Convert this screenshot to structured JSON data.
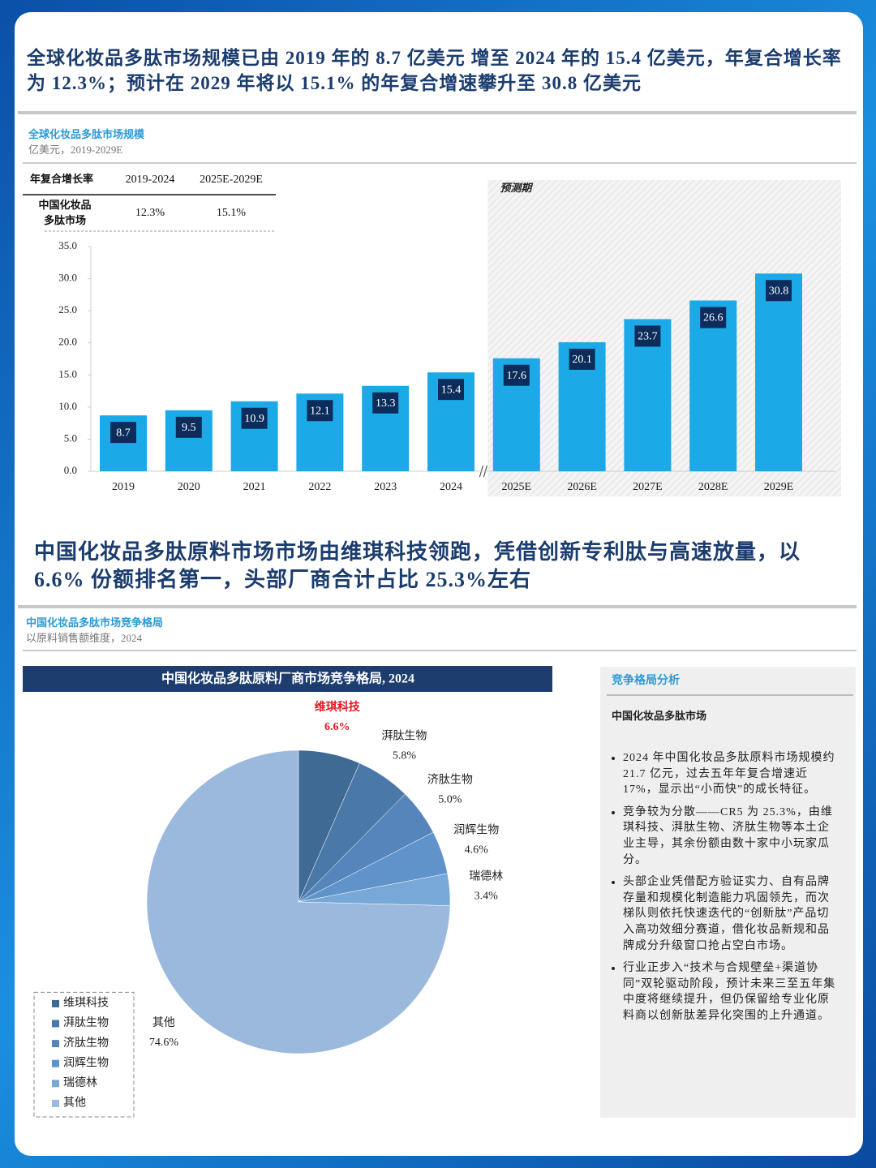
{
  "headline_top": "全球化妆品多肽市场规模已由 2019 年的 8.7 亿美元 增至 2024 年的 15.4 亿美元，年复合增长率为 12.3%；预计在 2029 年将以 15.1% 的年复合增速攀升至 30.8 亿美元",
  "cagr_table": {
    "header": [
      "年复合增长率",
      "2019-2024",
      "2025E-2029E"
    ],
    "row_label": [
      "中国化妆品",
      "多肽市场"
    ],
    "row_values": [
      "12.3%",
      "15.1%"
    ]
  },
  "headline_bottom": "中国化妆品多肽原料市场市场由维琪科技领跑，凭借创新专利肽与高速放量，以 6.6% 份额排名第一，头部厂商合计占比 25.3%左右",
  "chart_data": [
    {
      "type": "bar",
      "title": "全球化妆品多肽市场规模",
      "subtitle": "亿美元，2019-2029E",
      "annotation": "预测期",
      "categories": [
        "2019",
        "2020",
        "2021",
        "2022",
        "2023",
        "2024",
        "2025E",
        "2026E",
        "2027E",
        "2028E",
        "2029E"
      ],
      "values": [
        8.7,
        9.5,
        10.9,
        12.1,
        13.3,
        15.4,
        17.6,
        20.1,
        23.7,
        26.6,
        30.8
      ],
      "color": "#1ba9e8",
      "label_color": "#0c2d5c",
      "ylim": [
        0,
        35
      ],
      "yticks": [
        {
          "value": 0,
          "label": "0.0"
        },
        {
          "value": 5,
          "label": "5.0"
        },
        {
          "value": 10,
          "label": "10.0"
        },
        {
          "value": 15,
          "label": "15.0"
        },
        {
          "value": 20,
          "label": "20.0"
        },
        {
          "value": 25,
          "label": "25.0"
        },
        {
          "value": 30,
          "label": "30.0"
        },
        {
          "value": 35,
          "label": "35.0"
        }
      ]
    },
    {
      "type": "pie",
      "title": "中国化妆品多肽市场竞争格局",
      "subtitle": "以原料销售额维度，2024",
      "banner": "中国化妆品多肽原料厂商市场竞争格局, 2024",
      "categories": [
        "维琪科技",
        "湃肽生物",
        "济肽生物",
        "润辉生物",
        "瑞德林",
        "其他"
      ],
      "values": [
        6.6,
        5.8,
        5.0,
        4.6,
        3.4,
        74.6
      ],
      "value_labels": [
        "6.6%",
        "5.8%",
        "5.0%",
        "4.6%",
        "3.4%",
        "74.6%"
      ],
      "colors": [
        "#3e6a94",
        "#4a78a8",
        "#5585ba",
        "#5f93ca",
        "#78a8d8",
        "#9bb9dd"
      ],
      "highlight_color": "#e31b23",
      "legend": "lower left"
    }
  ],
  "analysis": {
    "title": "竞争格局分析",
    "subtitle": "中国化妆品多肽市场",
    "bullets": [
      "2024 年中国化妆品多肽原料市场规模约 21.7 亿元，过去五年年复合增速近 17%，显示出“小而快”的成长特征。",
      "竞争较为分散——CR5 为 25.3%，由维琪科技、湃肽生物、济肽生物等本土企业主导，其余份额由数十家中小玩家瓜分。",
      "头部企业凭借配方验证实力、自有品牌存量和规模化制造能力巩固领先，而次梯队则依托快速迭代的“创新肽”产品切入高功效细分赛道，借化妆品新规和品牌成分升级窗口抢占空白市场。",
      "行业正步入“技术与合规壁垒+渠道协同”双轮驱动阶段，预计未来三至五年集中度将继续提升，但仍保留给专业化原料商以创新肽差异化突围的上升通道。"
    ]
  }
}
